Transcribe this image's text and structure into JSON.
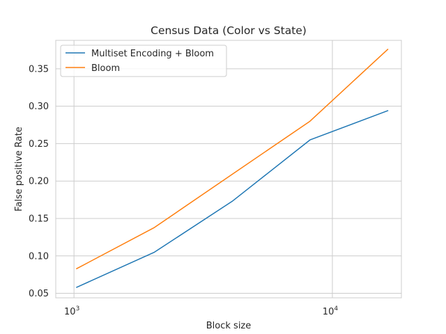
{
  "chart_data": {
    "type": "line",
    "title": "Census Data (Color vs State)",
    "xlabel": "Block size",
    "ylabel": "False positive Rate",
    "xscale": "log",
    "xlim": [
      850,
      18500
    ],
    "ylim": [
      0.044,
      0.388
    ],
    "x_ticks": [
      {
        "value": 1000,
        "base": "10",
        "exp": "3"
      },
      {
        "value": 10000,
        "base": "10",
        "exp": "4"
      }
    ],
    "y_ticks": [
      {
        "value": 0.05,
        "label": "0.05"
      },
      {
        "value": 0.1,
        "label": "0.10"
      },
      {
        "value": 0.15,
        "label": "0.15"
      },
      {
        "value": 0.2,
        "label": "0.20"
      },
      {
        "value": 0.25,
        "label": "0.25"
      },
      {
        "value": 0.3,
        "label": "0.30"
      },
      {
        "value": 0.35,
        "label": "0.35"
      }
    ],
    "grid": true,
    "legend_position": "upper-left",
    "series": [
      {
        "name": "Multiset Encoding + Bloom",
        "color": "#1f77b4",
        "x": [
          1024,
          2048,
          4096,
          8192,
          16384
        ],
        "values": [
          0.058,
          0.105,
          0.173,
          0.255,
          0.294
        ]
      },
      {
        "name": "Bloom",
        "color": "#ff7f0e",
        "x": [
          1024,
          2048,
          4096,
          8192,
          16384
        ],
        "values": [
          0.083,
          0.138,
          0.209,
          0.28,
          0.376
        ]
      }
    ]
  }
}
